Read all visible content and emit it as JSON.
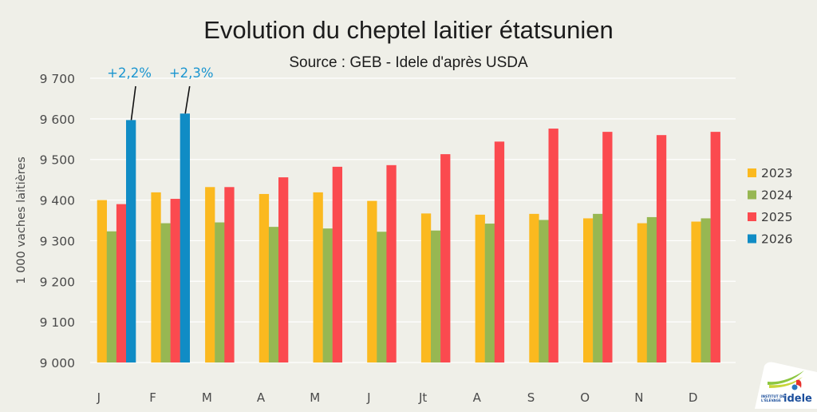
{
  "chart_data": {
    "type": "bar",
    "title": "Evolution du cheptel laitier étatsunien",
    "subtitle": "Source : GEB - Idele d'après USDA",
    "xlabel": "",
    "ylabel": "1 000  vaches laitières",
    "ylim": [
      9000,
      9700
    ],
    "yticks": [
      9000,
      9100,
      9200,
      9300,
      9400,
      9500,
      9600,
      9700
    ],
    "ytick_labels": [
      "9 000",
      "9 100",
      "9 200",
      "9 300",
      "9 400",
      "9 500",
      "9 600",
      "9 700"
    ],
    "grid": true,
    "legend_position": "right",
    "categories": [
      "J",
      "F",
      "M",
      "A",
      "M",
      "J",
      "Jt",
      "A",
      "S",
      "O",
      "N",
      "D"
    ],
    "series": [
      {
        "name": "2023",
        "color": "#fbb91f",
        "values": [
          9400,
          9419,
          9432,
          9415,
          9419,
          9398,
          9367,
          9364,
          9366,
          9355,
          9343,
          9347
        ]
      },
      {
        "name": "2024",
        "color": "#97b752",
        "values": [
          9323,
          9343,
          9345,
          9334,
          9330,
          9322,
          9325,
          9342,
          9351,
          9366,
          9358,
          9355
        ]
      },
      {
        "name": "2025",
        "color": "#fb4a4f",
        "values": [
          9390,
          9403,
          9432,
          9456,
          9482,
          9486,
          9513,
          9544,
          9576,
          9568,
          9560,
          9568
        ]
      },
      {
        "name": "2026",
        "color": "#108cc5",
        "values": [
          9597,
          9613,
          null,
          null,
          null,
          null,
          null,
          null,
          null,
          null,
          null,
          null
        ]
      }
    ],
    "annotations": [
      {
        "text": "+2,2%",
        "category_index": 0,
        "series": "2026",
        "color": "#1a95d0"
      },
      {
        "text": "+2,3%",
        "category_index": 1,
        "series": "2026",
        "color": "#1a95d0"
      }
    ]
  },
  "logo": {
    "line1": "INSTITUT DE",
    "line2": "L'ÉLEVAGE",
    "brand": "idele"
  }
}
